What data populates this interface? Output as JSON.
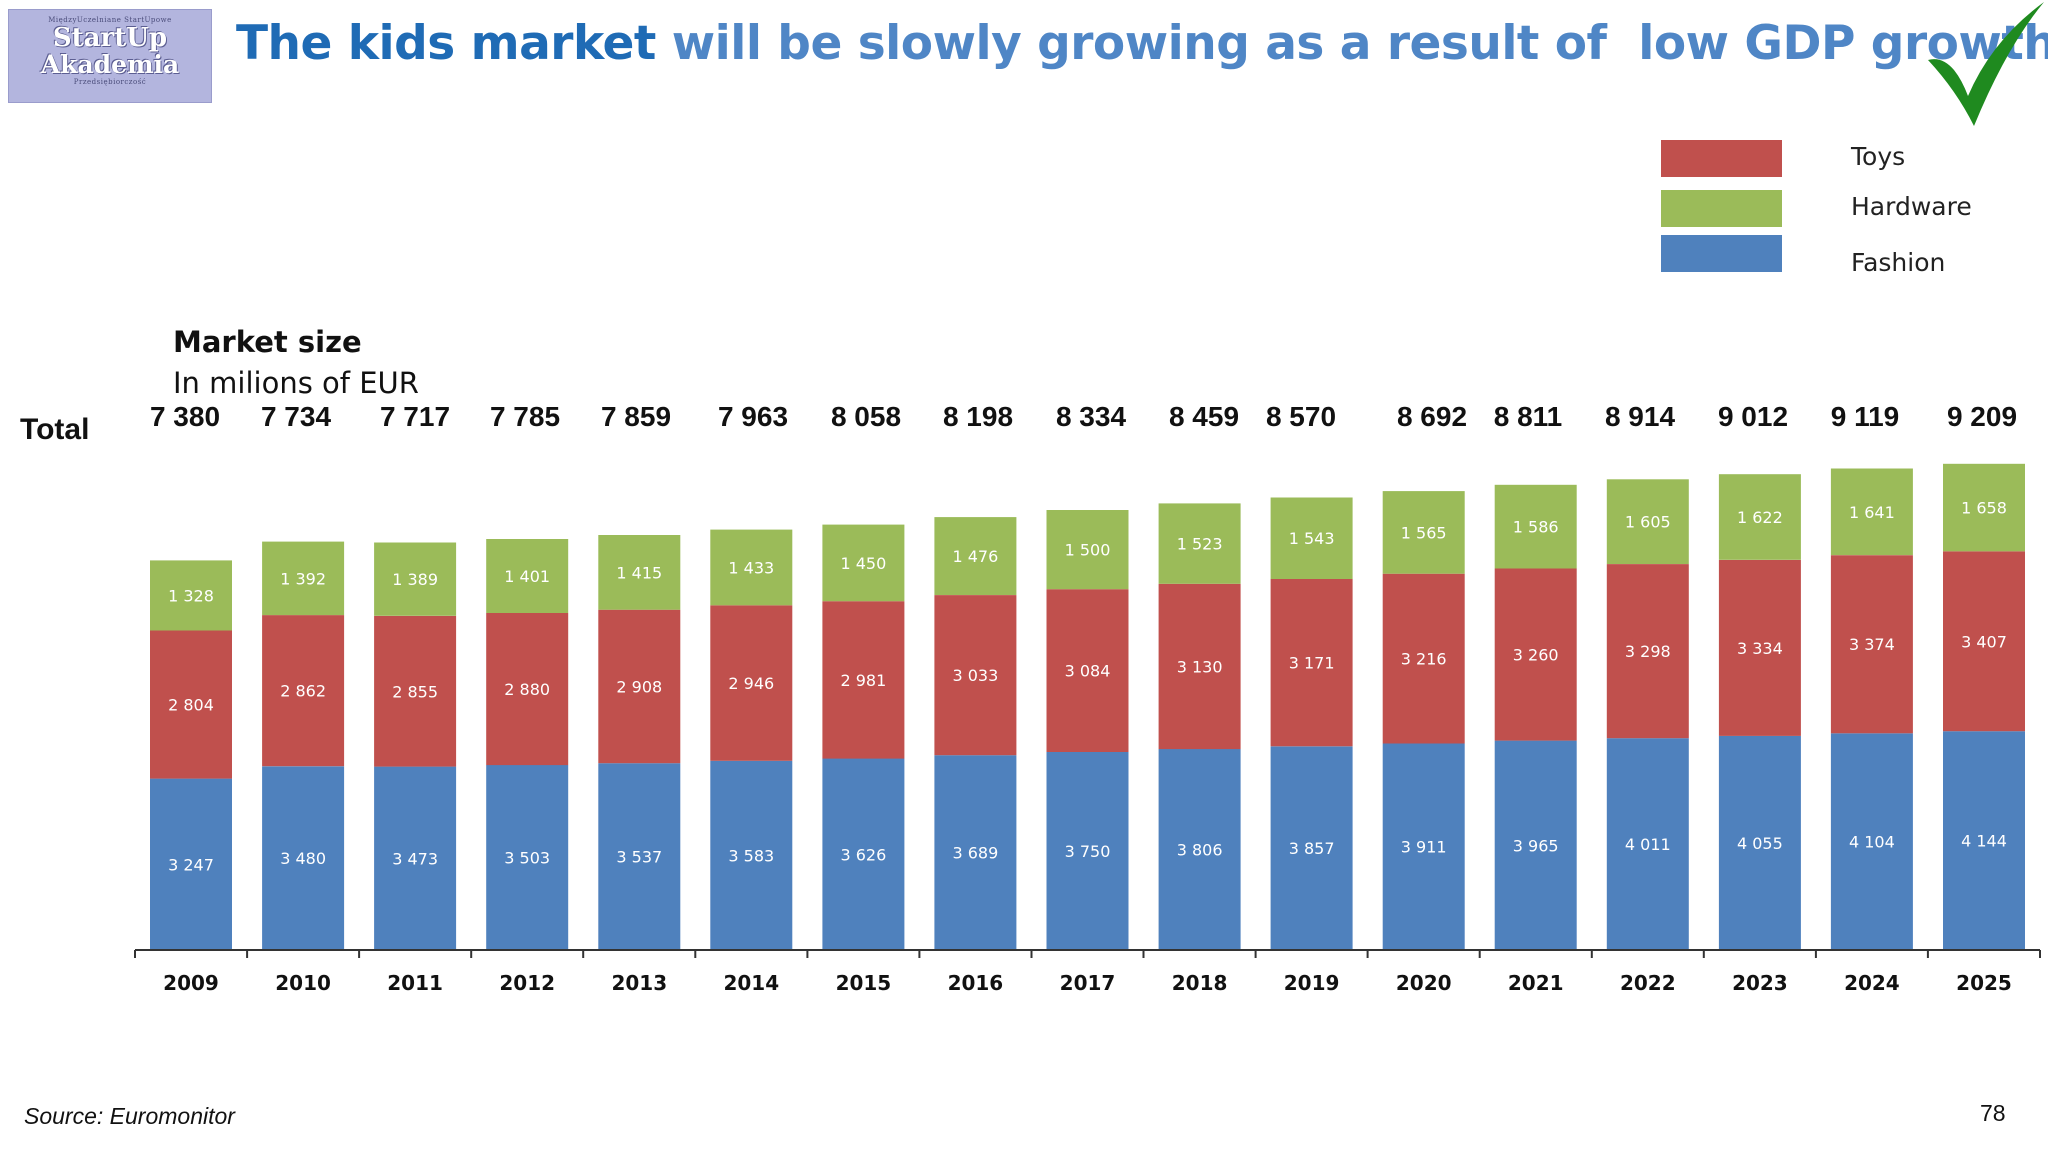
{
  "logo": {
    "top_text": "MiędzyUczelniane StartUpowe",
    "line1": "StartUp",
    "line2": "Akademia",
    "bottom_text": "Przedsiębiorczość"
  },
  "title": {
    "part1": "The kids market",
    "part2": " will be slowly growing as a result of  low GDP growth"
  },
  "slide_number": "78",
  "source": "Source: Euromonitor",
  "colors": {
    "fashion": "#4f81bd",
    "toys": "#c0504d",
    "hardware": "#9bbb59",
    "check": "#1f8a1f"
  },
  "legend": [
    {
      "name": "Toys",
      "color": "#c0504d"
    },
    {
      "name": "Hardware",
      "color": "#9bbb59"
    },
    {
      "name": "Fashion",
      "color": "#4f81bd"
    }
  ],
  "chart_data": {
    "type": "bar",
    "stacked": true,
    "title": "Market size",
    "subtitle": "In milions of EUR",
    "totals_label": "Total",
    "categories": [
      "2009",
      "2010",
      "2011",
      "2012",
      "2013",
      "2014",
      "2015",
      "2016",
      "2017",
      "2018",
      "2019",
      "2020",
      "2021",
      "2022",
      "2023",
      "2024",
      "2025"
    ],
    "totals": [
      "7 380",
      "7 734",
      "7 717",
      "7 785",
      "7 859",
      "7 963",
      "8 058",
      "8 198",
      "8 334",
      "8 459",
      "8 570",
      "8 692",
      "8 811",
      "8 914",
      "9 012",
      "9 119",
      "9 209"
    ],
    "series": [
      {
        "name": "Fashion",
        "color": "#4f81bd",
        "values": [
          3247,
          3480,
          3473,
          3503,
          3537,
          3583,
          3626,
          3689,
          3750,
          3806,
          3857,
          3911,
          3965,
          4011,
          4055,
          4104,
          4144
        ],
        "labels": [
          "3 247",
          "3 480",
          "3 473",
          "3 503",
          "3 537",
          "3 583",
          "3 626",
          "3 689",
          "3 750",
          "3 806",
          "3 857",
          "3 911",
          "3 965",
          "4 011",
          "4 055",
          "4 104",
          "4 144"
        ]
      },
      {
        "name": "Toys",
        "color": "#c0504d",
        "values": [
          2804,
          2862,
          2855,
          2880,
          2908,
          2946,
          2981,
          3033,
          3084,
          3130,
          3171,
          3216,
          3260,
          3298,
          3334,
          3374,
          3407
        ],
        "labels": [
          "2 804",
          "2 862",
          "2 855",
          "2 880",
          "2 908",
          "2 946",
          "2 981",
          "3 033",
          "3 084",
          "3 130",
          "3 171",
          "3 216",
          "3 260",
          "3 298",
          "3 334",
          "3 374",
          "3 407"
        ]
      },
      {
        "name": "Hardware",
        "color": "#9bbb59",
        "values": [
          1328,
          1392,
          1389,
          1401,
          1415,
          1433,
          1450,
          1476,
          1500,
          1523,
          1543,
          1565,
          1586,
          1605,
          1622,
          1641,
          1658
        ],
        "labels": [
          "1 328",
          "1 392",
          "1 389",
          "1 401",
          "1 415",
          "1 433",
          "1 450",
          "1 476",
          "1 500",
          "1 523",
          "1 543",
          "1 565",
          "1 586",
          "1 605",
          "1 622",
          "1 641",
          "1 658"
        ]
      }
    ],
    "legend_position": "top-right",
    "grid": false,
    "y_axis_visible": false
  }
}
